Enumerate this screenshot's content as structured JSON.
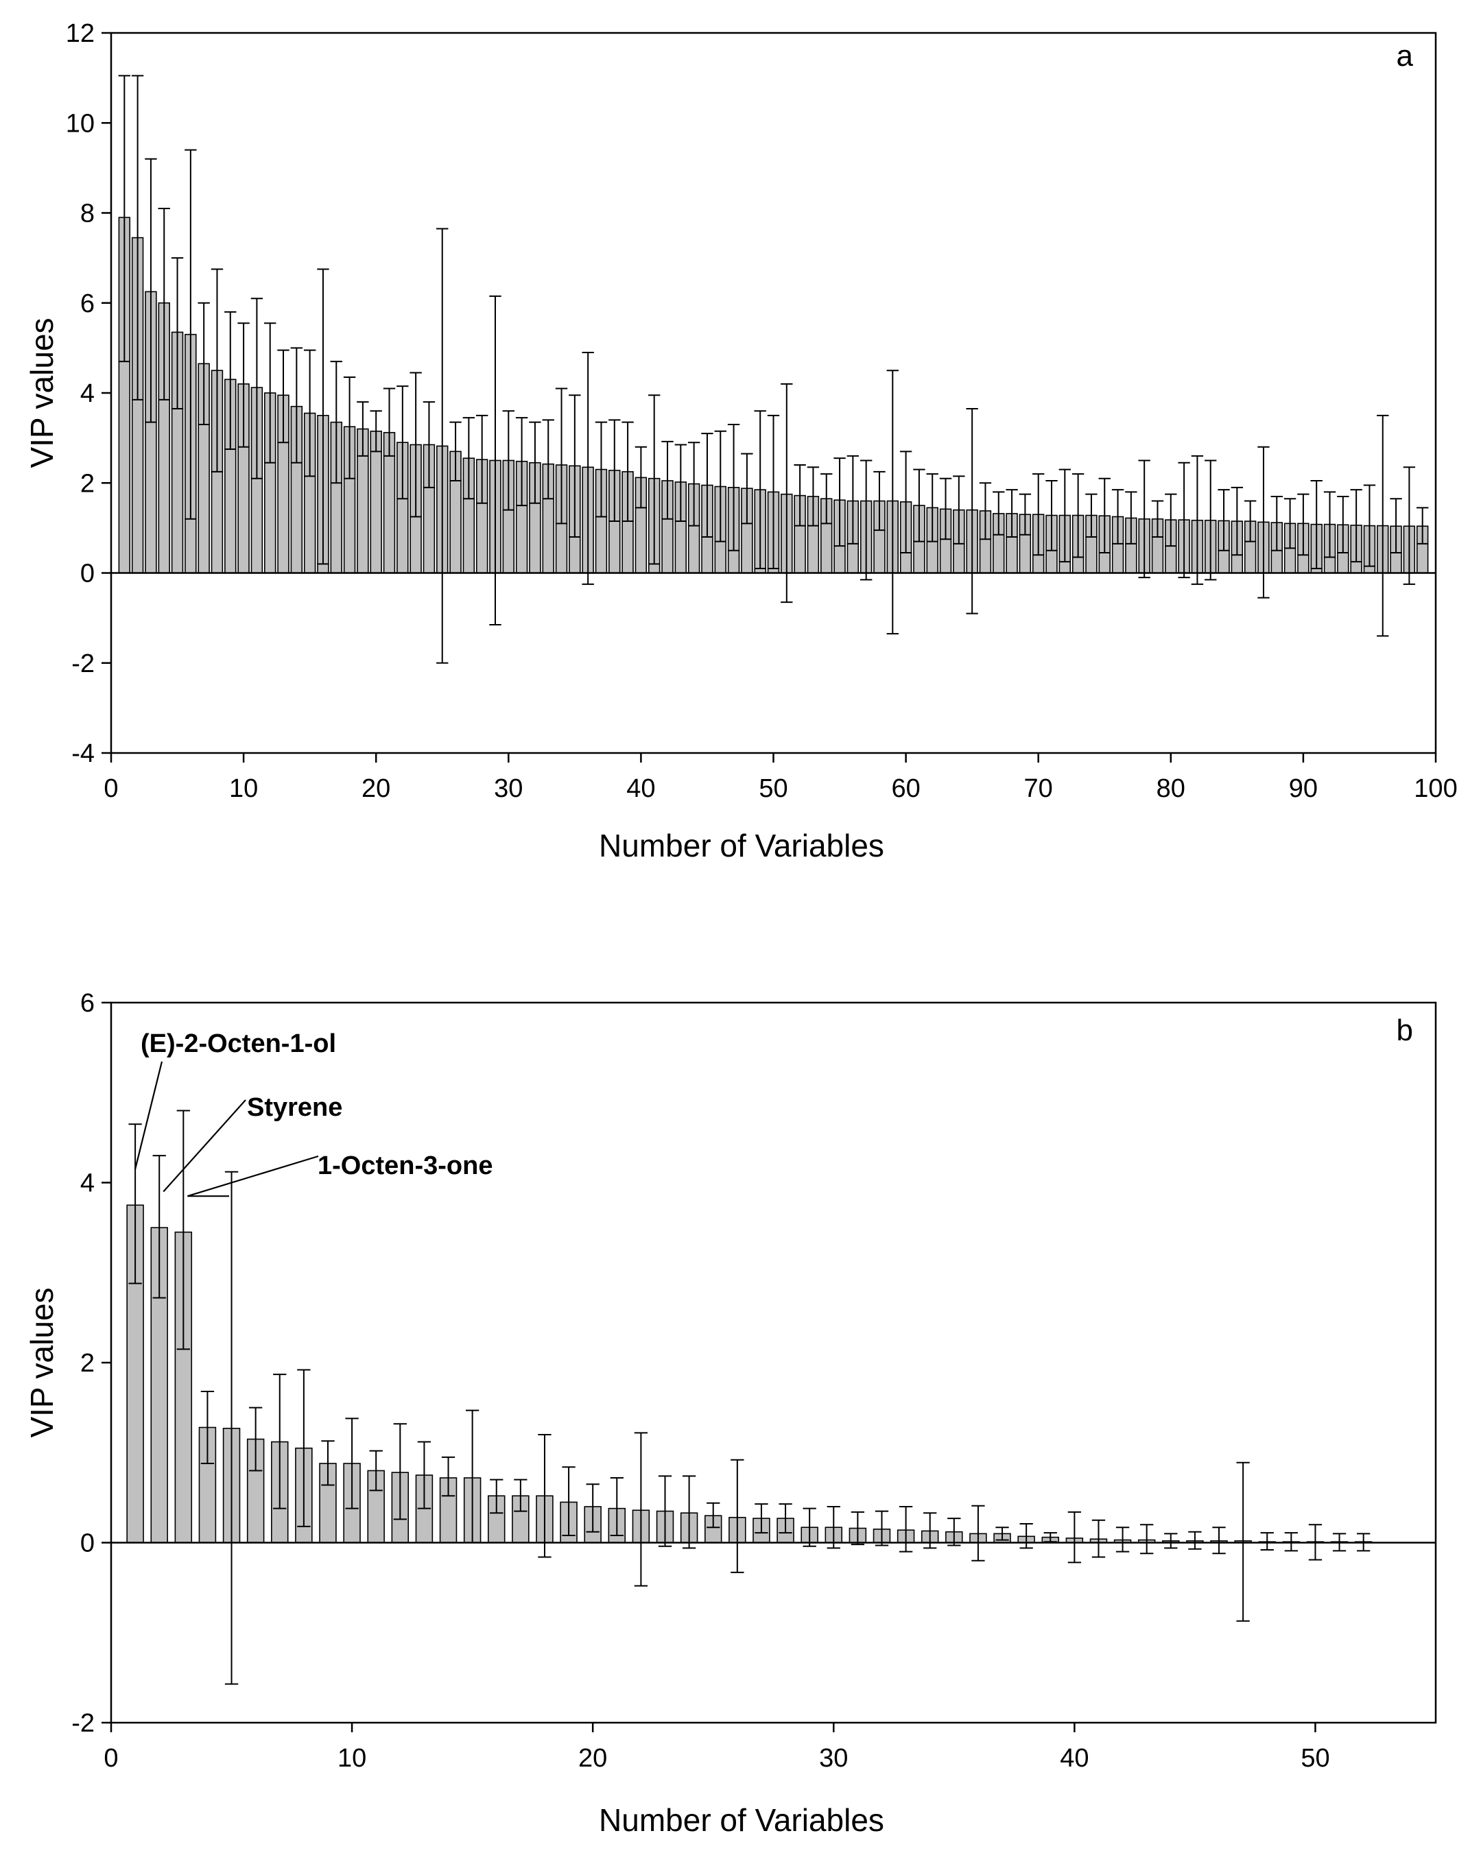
{
  "chart_data": [
    {
      "type": "bar",
      "panel_label": "a",
      "xlabel": "Number of Variables",
      "ylabel": "VIP values",
      "xlim": [
        0,
        100
      ],
      "ylim": [
        -4,
        12
      ],
      "xticks": [
        0,
        10,
        20,
        30,
        40,
        50,
        60,
        70,
        80,
        90,
        100
      ],
      "yticks": [
        -4,
        -2,
        0,
        2,
        4,
        6,
        8,
        10,
        12
      ],
      "x": [
        1,
        2,
        3,
        4,
        5,
        6,
        7,
        8,
        9,
        10,
        11,
        12,
        13,
        14,
        15,
        16,
        17,
        18,
        19,
        20,
        21,
        22,
        23,
        24,
        25,
        26,
        27,
        28,
        29,
        30,
        31,
        32,
        33,
        34,
        35,
        36,
        37,
        38,
        39,
        40,
        41,
        42,
        43,
        44,
        45,
        46,
        47,
        48,
        49,
        50,
        51,
        52,
        53,
        54,
        55,
        56,
        57,
        58,
        59,
        60,
        61,
        62,
        63,
        64,
        65,
        66,
        67,
        68,
        69,
        70,
        71,
        72,
        73,
        74,
        75,
        76,
        77,
        78,
        79,
        80,
        81,
        82,
        83,
        84,
        85,
        86,
        87,
        88,
        89,
        90,
        91,
        92,
        93,
        94,
        95,
        96,
        97,
        98,
        99
      ],
      "values": [
        7.9,
        7.45,
        6.25,
        6.0,
        5.35,
        5.3,
        4.65,
        4.5,
        4.3,
        4.2,
        4.12,
        4.0,
        3.95,
        3.7,
        3.55,
        3.5,
        3.35,
        3.25,
        3.2,
        3.15,
        3.12,
        2.9,
        2.85,
        2.85,
        2.82,
        2.7,
        2.55,
        2.52,
        2.5,
        2.5,
        2.48,
        2.45,
        2.42,
        2.4,
        2.38,
        2.35,
        2.3,
        2.28,
        2.25,
        2.12,
        2.1,
        2.05,
        2.02,
        1.98,
        1.95,
        1.92,
        1.9,
        1.88,
        1.85,
        1.8,
        1.75,
        1.72,
        1.7,
        1.65,
        1.62,
        1.6,
        1.6,
        1.6,
        1.6,
        1.58,
        1.5,
        1.45,
        1.42,
        1.4,
        1.4,
        1.38,
        1.32,
        1.32,
        1.3,
        1.3,
        1.28,
        1.28,
        1.28,
        1.28,
        1.27,
        1.25,
        1.22,
        1.2,
        1.2,
        1.18,
        1.18,
        1.17,
        1.17,
        1.16,
        1.15,
        1.15,
        1.13,
        1.12,
        1.1,
        1.1,
        1.08,
        1.08,
        1.07,
        1.06,
        1.05,
        1.05,
        1.04,
        1.04,
        1.04
      ],
      "err_upper": [
        11.05,
        11.05,
        9.2,
        8.1,
        7.0,
        9.4,
        6.0,
        6.75,
        5.8,
        5.55,
        6.1,
        5.55,
        4.95,
        5.0,
        4.95,
        6.75,
        4.7,
        4.35,
        3.8,
        3.6,
        4.1,
        4.15,
        4.45,
        3.8,
        7.65,
        3.35,
        3.45,
        3.5,
        6.15,
        3.6,
        3.45,
        3.35,
        3.4,
        4.1,
        3.95,
        4.9,
        3.35,
        3.4,
        3.35,
        2.8,
        3.95,
        2.92,
        2.85,
        2.9,
        3.1,
        3.15,
        3.3,
        2.65,
        3.6,
        3.5,
        4.2,
        2.4,
        2.35,
        2.2,
        2.55,
        2.6,
        2.5,
        2.25,
        4.5,
        2.7,
        2.3,
        2.2,
        2.1,
        2.15,
        3.65,
        2.0,
        1.8,
        1.85,
        1.75,
        2.2,
        2.05,
        2.3,
        2.2,
        1.75,
        2.1,
        1.85,
        1.8,
        2.5,
        1.6,
        1.75,
        2.45,
        2.6,
        2.5,
        1.85,
        1.9,
        1.6,
        2.8,
        1.7,
        1.65,
        1.75,
        2.05,
        1.8,
        1.7,
        1.85,
        1.95,
        3.5,
        1.65,
        2.35,
        1.45
      ],
      "err_lower": [
        4.7,
        3.85,
        3.35,
        3.85,
        3.65,
        1.2,
        3.3,
        2.25,
        2.75,
        2.8,
        2.1,
        2.45,
        2.9,
        2.45,
        2.15,
        0.2,
        2.0,
        2.1,
        2.6,
        2.7,
        2.6,
        1.65,
        1.25,
        1.9,
        -2.0,
        2.05,
        1.65,
        1.55,
        -1.15,
        1.4,
        1.5,
        1.55,
        1.65,
        1.1,
        0.8,
        -0.25,
        1.25,
        1.15,
        1.15,
        1.45,
        0.2,
        1.2,
        1.15,
        1.05,
        0.8,
        0.7,
        0.5,
        1.1,
        0.1,
        0.1,
        -0.65,
        1.05,
        1.05,
        1.1,
        0.6,
        0.65,
        -0.15,
        0.95,
        -1.35,
        0.45,
        0.7,
        0.7,
        0.75,
        0.65,
        -0.9,
        0.75,
        0.85,
        0.8,
        0.85,
        0.4,
        0.5,
        0.25,
        0.35,
        0.8,
        0.45,
        0.65,
        0.65,
        -0.1,
        0.8,
        0.6,
        -0.1,
        -0.25,
        -0.15,
        0.5,
        0.4,
        0.7,
        -0.55,
        0.5,
        0.55,
        0.4,
        0.1,
        0.35,
        0.45,
        0.25,
        0.15,
        -1.4,
        0.45,
        -0.25,
        0.65
      ]
    },
    {
      "type": "bar",
      "panel_label": "b",
      "xlabel": "Number of Variables",
      "ylabel": "VIP values",
      "xlim": [
        0,
        55
      ],
      "ylim": [
        -2,
        6
      ],
      "xticks": [
        0,
        10,
        20,
        30,
        40,
        50
      ],
      "yticks": [
        -2,
        0,
        2,
        4,
        6
      ],
      "x": [
        1,
        2,
        3,
        4,
        5,
        6,
        7,
        8,
        9,
        10,
        11,
        12,
        13,
        14,
        15,
        16,
        17,
        18,
        19,
        20,
        21,
        22,
        23,
        24,
        25,
        26,
        27,
        28,
        29,
        30,
        31,
        32,
        33,
        34,
        35,
        36,
        37,
        38,
        39,
        40,
        41,
        42,
        43,
        44,
        45,
        46,
        47,
        48,
        49,
        50,
        51,
        52
      ],
      "values": [
        3.75,
        3.5,
        3.45,
        1.28,
        1.27,
        1.15,
        1.12,
        1.05,
        0.88,
        0.88,
        0.8,
        0.78,
        0.75,
        0.72,
        0.72,
        0.52,
        0.52,
        0.52,
        0.45,
        0.4,
        0.38,
        0.36,
        0.35,
        0.33,
        0.3,
        0.28,
        0.27,
        0.27,
        0.17,
        0.17,
        0.16,
        0.15,
        0.14,
        0.13,
        0.12,
        0.1,
        0.1,
        0.07,
        0.06,
        0.05,
        0.04,
        0.03,
        0.03,
        0.02,
        0.02,
        0.02,
        0.02,
        0.01,
        0.01,
        0.01,
        0.01,
        0.01
      ],
      "err_upper": [
        4.65,
        4.3,
        4.8,
        1.68,
        4.12,
        1.5,
        1.87,
        1.92,
        1.13,
        1.38,
        1.02,
        1.32,
        1.12,
        0.95,
        1.47,
        0.7,
        0.7,
        1.2,
        0.84,
        0.65,
        0.72,
        1.22,
        0.74,
        0.74,
        0.44,
        0.92,
        0.43,
        0.43,
        0.38,
        0.4,
        0.34,
        0.35,
        0.4,
        0.33,
        0.27,
        0.41,
        0.17,
        0.21,
        0.11,
        0.34,
        0.25,
        0.17,
        0.2,
        0.1,
        0.12,
        0.17,
        0.89,
        0.11,
        0.11,
        0.2,
        0.1,
        0.1
      ],
      "err_lower": [
        2.88,
        2.72,
        2.15,
        0.88,
        -1.57,
        0.8,
        0.38,
        0.18,
        0.64,
        0.38,
        0.58,
        0.26,
        0.38,
        0.52,
        0.0,
        0.33,
        0.35,
        -0.16,
        0.08,
        0.12,
        0.08,
        -0.48,
        -0.04,
        -0.06,
        0.17,
        -0.33,
        0.11,
        0.11,
        -0.04,
        -0.06,
        -0.02,
        -0.03,
        -0.1,
        -0.06,
        -0.03,
        -0.2,
        0.03,
        -0.06,
        0.01,
        -0.22,
        -0.16,
        -0.1,
        -0.12,
        -0.06,
        -0.07,
        -0.12,
        -0.87,
        -0.08,
        -0.09,
        -0.19,
        -0.09,
        -0.09
      ],
      "annotations": [
        {
          "text": "(E)-2-Octen-1-ol",
          "x": 1,
          "y": 4.15
        },
        {
          "text": "Styrene",
          "x": 2,
          "y": 3.9
        },
        {
          "text": "1-Octen-3-one",
          "x": 3,
          "y": 3.85
        }
      ]
    }
  ]
}
